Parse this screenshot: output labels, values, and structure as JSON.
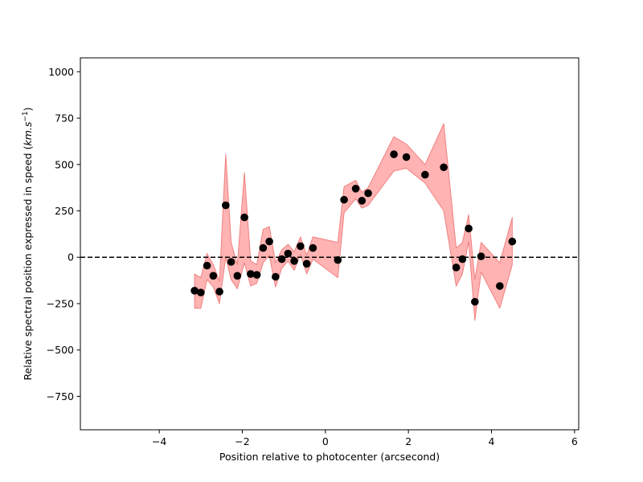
{
  "chart_data": {
    "type": "scatter",
    "title": "",
    "xlabel": "Position relative to photocenter (arcsecond)",
    "ylabel": {
      "text": "Relative spectral position expressed in speed (",
      "unit_base": "km.s",
      "unit_exp": "−1",
      "close": ")"
    },
    "xlim": [
      -5.9,
      6.1
    ],
    "ylim": [
      -930,
      1075
    ],
    "xticks": [
      -4,
      -2,
      0,
      2,
      4,
      6
    ],
    "xtick_labels": [
      "−4",
      "−2",
      "0",
      "2",
      "4",
      "6"
    ],
    "yticks": [
      -750,
      -500,
      -250,
      0,
      250,
      500,
      750,
      1000
    ],
    "ytick_labels": [
      "−750",
      "−500",
      "−250",
      "0",
      "250",
      "500",
      "750",
      "1000"
    ],
    "grid": false,
    "reference_line": {
      "y": 0,
      "style": "dashed",
      "color": "#000000"
    },
    "colors": {
      "points": "#000000",
      "band_fill": "#ffb3b3",
      "band_edge": "#f08080"
    },
    "points": [
      [
        -3.15,
        -180
      ],
      [
        -3.0,
        -190
      ],
      [
        -2.85,
        -45
      ],
      [
        -2.7,
        -100
      ],
      [
        -2.55,
        -185
      ],
      [
        -2.4,
        280
      ],
      [
        -2.27,
        -25
      ],
      [
        -2.12,
        -100
      ],
      [
        -1.95,
        215
      ],
      [
        -1.8,
        -90
      ],
      [
        -1.65,
        -95
      ],
      [
        -1.5,
        50
      ],
      [
        -1.35,
        85
      ],
      [
        -1.2,
        -105
      ],
      [
        -1.05,
        -10
      ],
      [
        -0.9,
        20
      ],
      [
        -0.75,
        -20
      ],
      [
        -0.6,
        60
      ],
      [
        -0.45,
        -35
      ],
      [
        -0.3,
        50
      ],
      [
        0.3,
        -15
      ],
      [
        0.45,
        310
      ],
      [
        0.73,
        370
      ],
      [
        0.88,
        305
      ],
      [
        1.03,
        345
      ],
      [
        1.65,
        555
      ],
      [
        1.95,
        540
      ],
      [
        2.4,
        445
      ],
      [
        2.85,
        485
      ],
      [
        3.15,
        -55
      ],
      [
        3.3,
        -10
      ],
      [
        3.45,
        155
      ],
      [
        3.6,
        -240
      ],
      [
        3.75,
        5
      ],
      [
        4.2,
        -155
      ],
      [
        4.5,
        85
      ]
    ],
    "band": {
      "x": [
        -3.15,
        -3.0,
        -2.85,
        -2.7,
        -2.55,
        -2.4,
        -2.27,
        -2.12,
        -1.95,
        -1.8,
        -1.65,
        -1.5,
        -1.35,
        -1.2,
        -1.05,
        -0.9,
        -0.75,
        -0.6,
        -0.45,
        -0.3,
        0.3,
        0.45,
        0.73,
        0.88,
        1.03,
        1.65,
        1.95,
        2.4,
        2.85,
        3.15,
        3.3,
        3.45,
        3.6,
        3.75,
        4.2,
        4.5
      ],
      "upper": [
        -90,
        -110,
        20,
        -40,
        -130,
        555,
        80,
        -40,
        455,
        -20,
        -40,
        150,
        165,
        -30,
        40,
        70,
        30,
        110,
        10,
        110,
        80,
        380,
        415,
        350,
        375,
        650,
        610,
        500,
        720,
        50,
        80,
        230,
        -120,
        80,
        -30,
        215
      ],
      "lower": [
        -275,
        -275,
        -120,
        -160,
        -250,
        0,
        -120,
        -170,
        -30,
        -155,
        -140,
        -30,
        10,
        -160,
        -60,
        -20,
        -70,
        15,
        -90,
        -10,
        -110,
        240,
        315,
        265,
        280,
        465,
        480,
        400,
        250,
        -155,
        -90,
        85,
        -340,
        -80,
        -275,
        -40
      ]
    }
  }
}
